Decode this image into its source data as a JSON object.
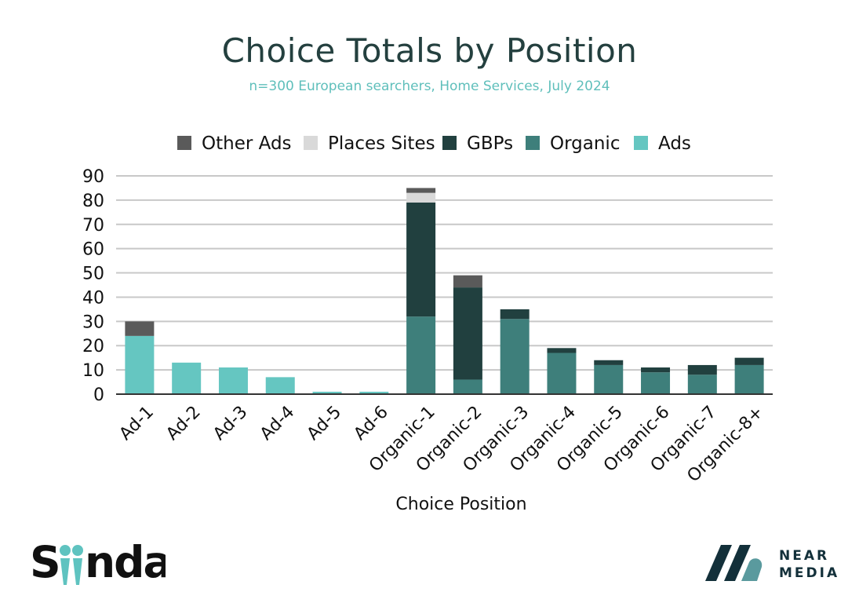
{
  "title": "Choice Totals by Position",
  "subtitle": "n=300 European searchers, Home Services, July 2024",
  "colors": {
    "Other Ads": "#5a5a5a",
    "Places Sites": "#d9d9d9",
    "GBPs": "#21403f",
    "Organic": "#3e7f7b",
    "Ads": "#65c6c1",
    "title": "#24403f",
    "subtitle": "#5fbfbb",
    "grid": "#c8c8c8",
    "axis": "#333333"
  },
  "chart_data": {
    "type": "bar",
    "stacked": true,
    "categories": [
      "Ad-1",
      "Ad-2",
      "Ad-3",
      "Ad-4",
      "Ad-5",
      "Ad-6",
      "Organic-1",
      "Organic-2",
      "Organic-3",
      "Organic-4",
      "Organic-5",
      "Organic-6",
      "Organic-7",
      "Organic-8+"
    ],
    "series": [
      {
        "name": "Ads",
        "values": [
          24,
          13,
          11,
          7,
          1,
          1,
          0,
          0,
          0,
          0,
          0,
          0,
          0,
          0
        ]
      },
      {
        "name": "Organic",
        "values": [
          0,
          0,
          0,
          0,
          0,
          0,
          32,
          6,
          31,
          17,
          12,
          9,
          8,
          12
        ]
      },
      {
        "name": "GBPs",
        "values": [
          0,
          0,
          0,
          0,
          0,
          0,
          47,
          38,
          4,
          2,
          2,
          2,
          4,
          3
        ]
      },
      {
        "name": "Places Sites",
        "values": [
          0,
          0,
          0,
          0,
          0,
          0,
          4,
          0,
          0,
          0,
          0,
          0,
          0,
          0
        ]
      },
      {
        "name": "Other Ads",
        "values": [
          6,
          0,
          0,
          0,
          0,
          0,
          2,
          5,
          0,
          0,
          0,
          0,
          0,
          0
        ]
      }
    ],
    "legend_order": [
      "Other Ads",
      "Places Sites",
      "GBPs",
      "Organic",
      "Ads"
    ],
    "legend_position": "top",
    "xlabel": "Choice Position",
    "ylabel": "",
    "ylim": [
      0,
      90
    ],
    "yticks": [
      0,
      10,
      20,
      30,
      40,
      50,
      60,
      70,
      80,
      90
    ],
    "grid": true
  },
  "logos": {
    "left": "Sinda",
    "right": [
      "NEAR",
      "MEDIA"
    ]
  }
}
